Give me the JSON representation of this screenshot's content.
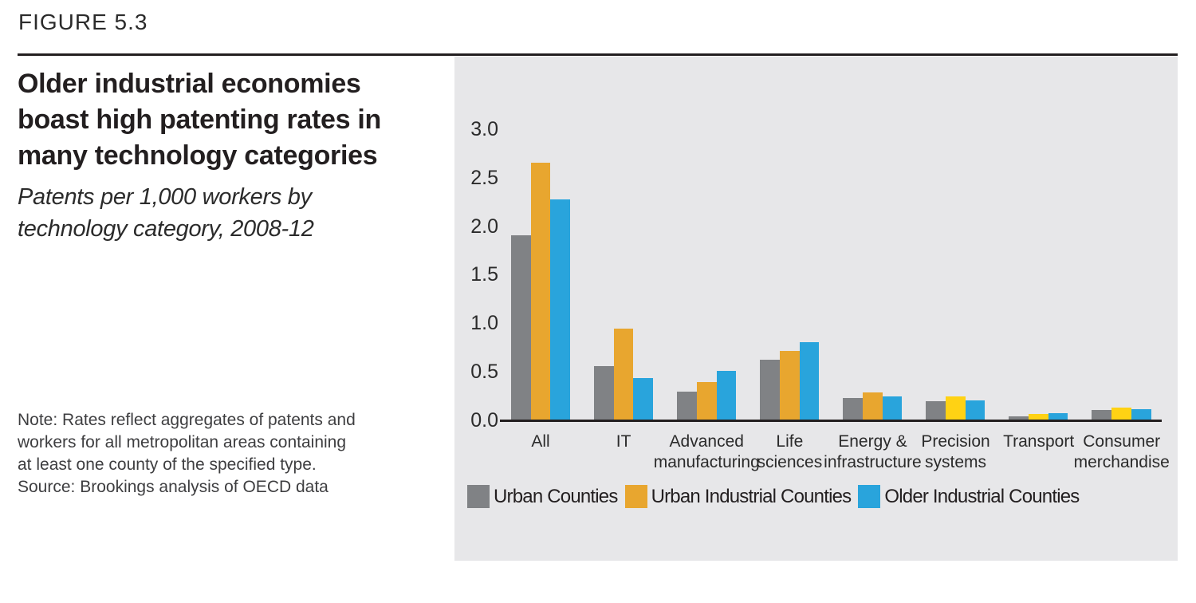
{
  "figure": {
    "label": "FIGURE 5.3",
    "title": "Older industrial economies\nboast high patenting rates in\nmany technology categories",
    "subtitle": "Patents per 1,000 workers by\ntechnology category, 2008-12",
    "note": "Note: Rates reflect aggregates of patents and\nworkers for all metropolitan areas containing\nat least one county of the specified type.\nSource: Brookings analysis of OECD data"
  },
  "colors": {
    "text_dark": "#231F20",
    "panel_background": "#E7E7E9",
    "axis_line": "#231F20",
    "gray_series": "#808285",
    "orange_series": "#E8A62F",
    "yellow_variant": "#FFD214",
    "blue_series": "#29A4DC"
  },
  "chart_data": {
    "type": "bar",
    "title": "Older industrial economies boast high patenting rates in many technology categories",
    "subtitle": "Patents per 1,000 workers by technology category, 2008-12",
    "xlabel": "",
    "ylabel": "Patents per 1,000 workers",
    "ylim": [
      0,
      3.0
    ],
    "ytick_labels": [
      "0.0",
      "0.5",
      "1.0",
      "1.5",
      "2.0",
      "2.5",
      "3.0"
    ],
    "grid": false,
    "legend_position": "bottom",
    "categories": [
      "All",
      "IT",
      "Advanced manufacturing",
      "Life sciences",
      "Energy & infrastructure",
      "Precision systems",
      "Transport",
      "Consumer merchandise"
    ],
    "category_label_lines": [
      [
        "All"
      ],
      [
        "IT"
      ],
      [
        "Advanced",
        "manufacturing"
      ],
      [
        "Life",
        "sciences"
      ],
      [
        "Energy &",
        "infrastructure"
      ],
      [
        "Precision",
        "systems"
      ],
      [
        "Transport"
      ],
      [
        "Consumer",
        "merchandise"
      ]
    ],
    "series": [
      {
        "name": "Urban Counties",
        "color": "#808285",
        "values": [
          1.9,
          0.55,
          0.29,
          0.62,
          0.22,
          0.19,
          0.03,
          0.1
        ]
      },
      {
        "name": "Urban Industrial Counties",
        "color": "#E8A62F",
        "color_overrides": {
          "5": "#FFD214",
          "6": "#FFD214",
          "7": "#FFD214"
        },
        "values": [
          2.65,
          0.94,
          0.39,
          0.71,
          0.28,
          0.24,
          0.06,
          0.12
        ]
      },
      {
        "name": "Older Industrial Counties",
        "color": "#29A4DC",
        "values": [
          2.27,
          0.43,
          0.5,
          0.8,
          0.24,
          0.2,
          0.07,
          0.11
        ]
      }
    ],
    "note": "Note: Rates reflect aggregates of patents and workers for all metropolitan areas containing at least one county of the specified type.",
    "source": "Source: Brookings analysis of OECD data"
  }
}
